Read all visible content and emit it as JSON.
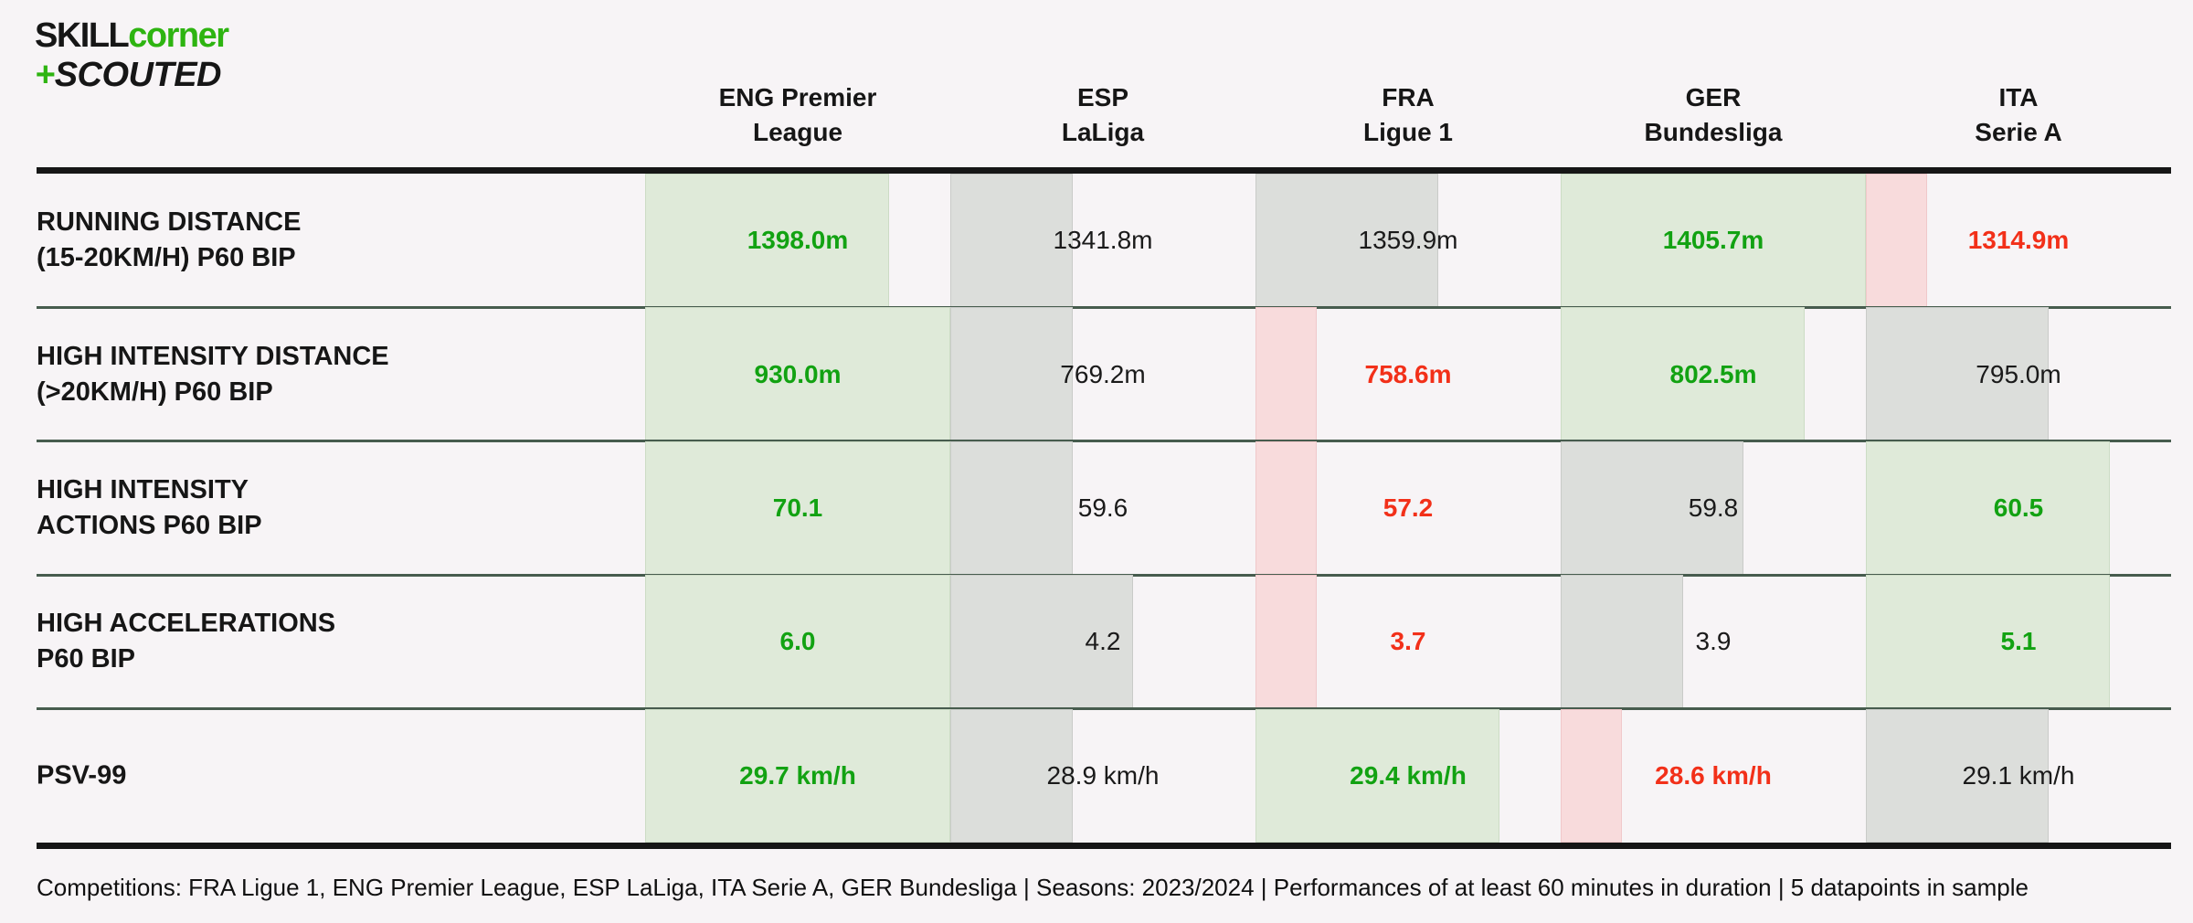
{
  "logo": {
    "skill": "SKILL",
    "corner": "corner",
    "plus": "+",
    "scouted": "SCOUTED"
  },
  "table": {
    "columns": [
      {
        "id": "eng",
        "label_line1": "ENG Premier",
        "label_line2": "League"
      },
      {
        "id": "esp",
        "label_line1": "ESP",
        "label_line2": "LaLiga"
      },
      {
        "id": "fra",
        "label_line1": "FRA",
        "label_line2": "Ligue 1"
      },
      {
        "id": "ger",
        "label_line1": "GER",
        "label_line2": "Bundesliga"
      },
      {
        "id": "ita",
        "label_line1": "ITA",
        "label_line2": "Serie A"
      }
    ],
    "rows": [
      {
        "id": "running-distance",
        "label_line1": "RUNNING DISTANCE",
        "label_line2": "(15-20KM/H) P60 BIP",
        "cells": [
          {
            "value": "1398.0m",
            "status": "good",
            "bar_pct": 80
          },
          {
            "value": "1341.8m",
            "status": "neutral",
            "bar_pct": 40
          },
          {
            "value": "1359.9m",
            "status": "neutral",
            "bar_pct": 60
          },
          {
            "value": "1405.7m",
            "status": "good",
            "bar_pct": 100
          },
          {
            "value": "1314.9m",
            "status": "bad",
            "bar_pct": 20
          }
        ]
      },
      {
        "id": "high-intensity-distance",
        "label_line1": "HIGH INTENSITY DISTANCE",
        "label_line2": "(>20KM/H) P60 BIP",
        "cells": [
          {
            "value": "930.0m",
            "status": "good",
            "bar_pct": 100
          },
          {
            "value": "769.2m",
            "status": "neutral",
            "bar_pct": 40
          },
          {
            "value": "758.6m",
            "status": "bad",
            "bar_pct": 20
          },
          {
            "value": "802.5m",
            "status": "good",
            "bar_pct": 80
          },
          {
            "value": "795.0m",
            "status": "neutral",
            "bar_pct": 60
          }
        ]
      },
      {
        "id": "high-intensity-actions",
        "label_line1": "HIGH INTENSITY",
        "label_line2": "ACTIONS P60 BIP",
        "cells": [
          {
            "value": "70.1",
            "status": "good",
            "bar_pct": 100
          },
          {
            "value": "59.6",
            "status": "neutral",
            "bar_pct": 40
          },
          {
            "value": "57.2",
            "status": "bad",
            "bar_pct": 20
          },
          {
            "value": "59.8",
            "status": "neutral",
            "bar_pct": 60
          },
          {
            "value": "60.5",
            "status": "good",
            "bar_pct": 80
          }
        ]
      },
      {
        "id": "high-accelerations",
        "label_line1": "HIGH ACCELERATIONS",
        "label_line2": "P60 BIP",
        "cells": [
          {
            "value": "6.0",
            "status": "good",
            "bar_pct": 100
          },
          {
            "value": "4.2",
            "status": "neutral",
            "bar_pct": 60
          },
          {
            "value": "3.7",
            "status": "bad",
            "bar_pct": 20
          },
          {
            "value": "3.9",
            "status": "neutral",
            "bar_pct": 40
          },
          {
            "value": "5.1",
            "status": "good",
            "bar_pct": 80
          }
        ]
      },
      {
        "id": "psv-99",
        "label_line1": "PSV-99",
        "label_line2": "",
        "cells": [
          {
            "value": "29.7 km/h",
            "status": "good",
            "bar_pct": 100
          },
          {
            "value": "28.9 km/h",
            "status": "neutral",
            "bar_pct": 40
          },
          {
            "value": "29.4 km/h",
            "status": "good",
            "bar_pct": 80
          },
          {
            "value": "28.6 km/h",
            "status": "bad",
            "bar_pct": 20
          },
          {
            "value": "29.1 km/h",
            "status": "neutral",
            "bar_pct": 60
          }
        ]
      }
    ]
  },
  "footer": {
    "text": "Competitions: FRA Ligue 1, ENG Premier League, ESP LaLiga, ITA Serie A, GER Bundesliga | Seasons: 2023/2024 | Performances of at least 60 minutes in duration | 5 datapoints in sample"
  },
  "colors": {
    "background": "#f7f4f6",
    "bar_good": "#dfead9",
    "bar_neutral": "#dcdedb",
    "bar_bad": "#f8dbdc",
    "text_good": "#12a212",
    "text_bad": "#f23019",
    "text_neutral": "#1a1a1a",
    "separator_line": "#475c4e",
    "thick_line": "#161616",
    "logo_green": "#2eb411"
  },
  "chart_data": {
    "type": "table",
    "categories": [
      "ENG Premier League",
      "ESP LaLiga",
      "FRA Ligue 1",
      "GER Bundesliga",
      "ITA Serie A"
    ],
    "series": [
      {
        "name": "RUNNING DISTANCE (15-20KM/H) P60 BIP",
        "unit": "m",
        "values": [
          1398.0,
          1341.8,
          1359.9,
          1405.7,
          1314.9
        ],
        "status": [
          "good",
          "neutral",
          "neutral",
          "good",
          "bad"
        ]
      },
      {
        "name": "HIGH INTENSITY DISTANCE (>20KM/H) P60 BIP",
        "unit": "m",
        "values": [
          930.0,
          769.2,
          758.6,
          802.5,
          795.0
        ],
        "status": [
          "good",
          "neutral",
          "bad",
          "good",
          "neutral"
        ]
      },
      {
        "name": "HIGH INTENSITY ACTIONS P60 BIP",
        "unit": "",
        "values": [
          70.1,
          59.6,
          57.2,
          59.8,
          60.5
        ],
        "status": [
          "good",
          "neutral",
          "bad",
          "neutral",
          "good"
        ]
      },
      {
        "name": "HIGH ACCELERATIONS P60 BIP",
        "unit": "",
        "values": [
          6.0,
          4.2,
          3.7,
          3.9,
          5.1
        ],
        "status": [
          "good",
          "neutral",
          "bad",
          "neutral",
          "good"
        ]
      },
      {
        "name": "PSV-99",
        "unit": "km/h",
        "values": [
          29.7,
          28.9,
          29.4,
          28.6,
          29.1
        ],
        "status": [
          "good",
          "neutral",
          "good",
          "bad",
          "neutral"
        ]
      }
    ],
    "legend_position": "none",
    "grid": "horizontal separators only",
    "bar_encoding": "cell background bar width = within-row rank x 20% of column width; green = strong, grey = neutral, pink/red = weak"
  }
}
